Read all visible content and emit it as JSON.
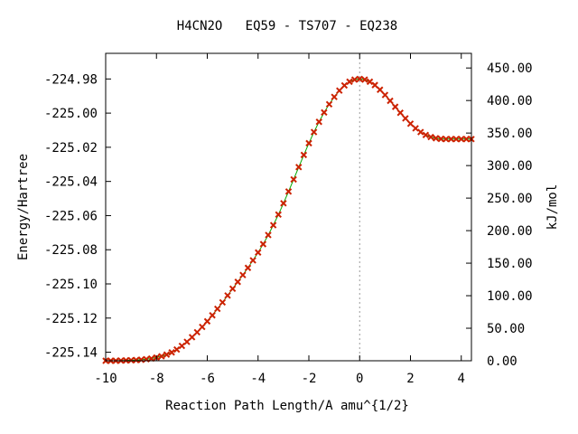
{
  "chart_data": {
    "type": "line",
    "title": "H4CN2O   EQ59 - TS707 - EQ238",
    "xlabel": "Reaction Path Length/A amu^{1/2}",
    "ylabel": "Energy/Hartree",
    "y2label": "kJ/mol",
    "xlim": [
      -10,
      4.4
    ],
    "ylim": [
      -225.145,
      -224.965
    ],
    "y2lim": [
      0,
      472.5
    ],
    "grid": false,
    "x_ticks": [
      -10,
      -8,
      -6,
      -4,
      -2,
      0,
      2,
      4
    ],
    "x_tick_labels": [
      "-10",
      "-8",
      "-6",
      "-4",
      "-2",
      "0",
      "2",
      "4"
    ],
    "y_ticks": [
      -224.98,
      -225.0,
      -225.02,
      -225.04,
      -225.06,
      -225.08,
      -225.1,
      -225.12,
      -225.14
    ],
    "y_tick_labels": [
      "-224.98",
      "-225.00",
      "-225.02",
      "-225.04",
      "-225.06",
      "-225.08",
      "-225.10",
      "-225.12",
      "-225.14"
    ],
    "y2_ticks": [
      0,
      50,
      100,
      150,
      200,
      250,
      300,
      350,
      400,
      450
    ],
    "y2_tick_labels": [
      "0.00",
      "50.00",
      "100.00",
      "150.00",
      "200.00",
      "250.00",
      "300.00",
      "350.00",
      "400.00",
      "450.00"
    ],
    "ts_marker_x": 0,
    "line_color": "#00aa00",
    "marker_color": "#cc2200",
    "ts_line_color": "#999999",
    "series": [
      {
        "x": [
          -10.0,
          -9.8,
          -9.6,
          -9.4,
          -9.2,
          -9.0,
          -8.8,
          -8.6,
          -8.4,
          -8.2,
          -8.0,
          -7.8,
          -7.6,
          -7.4,
          -7.2,
          -7.0,
          -6.8,
          -6.6,
          -6.4,
          -6.2,
          -6.0,
          -5.8,
          -5.6,
          -5.4,
          -5.2,
          -5.0,
          -4.8,
          -4.6,
          -4.4,
          -4.2,
          -4.0,
          -3.8,
          -3.6,
          -3.4,
          -3.2,
          -3.0,
          -2.8,
          -2.6,
          -2.4,
          -2.2,
          -2.0,
          -1.8,
          -1.6,
          -1.4,
          -1.2,
          -1.0,
          -0.8,
          -0.6,
          -0.4,
          -0.2,
          0.0,
          0.2,
          0.4,
          0.6,
          0.8,
          1.0,
          1.2,
          1.4,
          1.6,
          1.8,
          2.0,
          2.2,
          2.4,
          2.6,
          2.8,
          3.0,
          3.2,
          3.4,
          3.6,
          3.8,
          4.0,
          4.2,
          4.4
        ],
        "values": [
          -225.145,
          -225.145,
          -225.145,
          -225.1449,
          -225.1448,
          -225.1447,
          -225.1446,
          -225.1444,
          -225.1441,
          -225.1437,
          -225.1431,
          -225.1424,
          -225.1414,
          -225.1401,
          -225.1384,
          -225.1363,
          -225.1339,
          -225.1312,
          -225.1283,
          -225.1252,
          -225.1219,
          -225.1184,
          -225.1146,
          -225.1108,
          -225.1068,
          -225.1028,
          -225.0988,
          -225.0948,
          -225.0906,
          -225.0862,
          -225.0816,
          -225.0767,
          -225.0714,
          -225.0656,
          -225.0594,
          -225.0528,
          -225.0459,
          -225.0388,
          -225.0316,
          -225.0245,
          -225.0176,
          -225.0111,
          -225.0051,
          -224.9996,
          -224.9948,
          -224.9905,
          -224.9868,
          -224.9838,
          -224.9816,
          -224.9804,
          -224.98,
          -224.9804,
          -224.9816,
          -224.9836,
          -224.9863,
          -224.9894,
          -224.9928,
          -224.9963,
          -224.9998,
          -225.0031,
          -225.0062,
          -225.0089,
          -225.0111,
          -225.0128,
          -225.014,
          -225.0147,
          -225.0151,
          -225.0152,
          -225.0152,
          -225.0152,
          -225.0152,
          -225.0152,
          -225.0152
        ]
      }
    ]
  }
}
